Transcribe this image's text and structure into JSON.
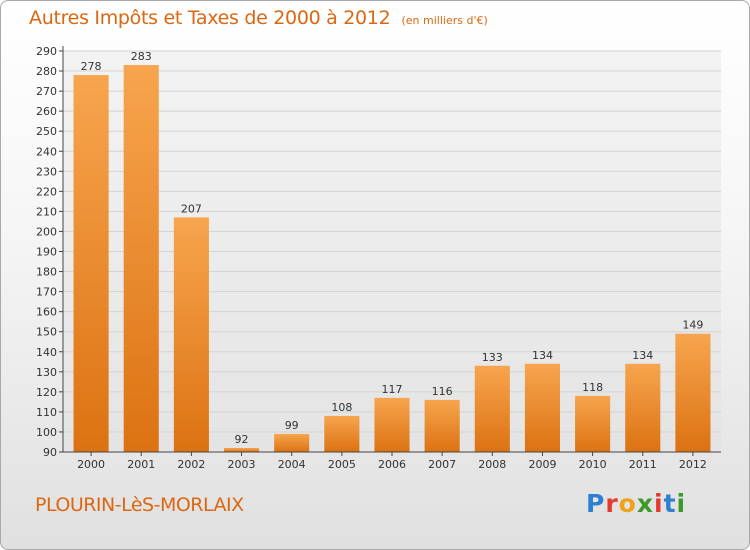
{
  "chart_data": {
    "type": "bar",
    "title": "Autres Impôts et Taxes de 2000 à 2012",
    "subtitle": "(en milliers d'€)",
    "xlabel": "",
    "ylabel": "",
    "categories": [
      "2000",
      "2001",
      "2002",
      "2003",
      "2004",
      "2005",
      "2006",
      "2007",
      "2008",
      "2009",
      "2010",
      "2011",
      "2012"
    ],
    "values": [
      278,
      283,
      207,
      92,
      99,
      108,
      117,
      116,
      133,
      134,
      118,
      134,
      149
    ],
    "ylim": [
      90,
      290
    ],
    "yticks": [
      90,
      100,
      110,
      120,
      130,
      140,
      150,
      160,
      170,
      180,
      190,
      200,
      210,
      220,
      230,
      240,
      250,
      260,
      270,
      280,
      290
    ],
    "grid": true,
    "bar_color": "#f0892a"
  },
  "footer": {
    "place": "PLOURIN-LèS-MORLAIX",
    "logo_letters": [
      {
        "ch": "P",
        "color": "#2f7fd0"
      },
      {
        "ch": "r",
        "color": "#e33a2f"
      },
      {
        "ch": "o",
        "color": "#f0a21a"
      },
      {
        "ch": "x",
        "color": "#3a9a2a"
      },
      {
        "ch": "i",
        "color": "#e33a2f"
      },
      {
        "ch": "t",
        "color": "#2f7fd0"
      },
      {
        "ch": "i",
        "color": "#3a9a2a"
      }
    ]
  }
}
